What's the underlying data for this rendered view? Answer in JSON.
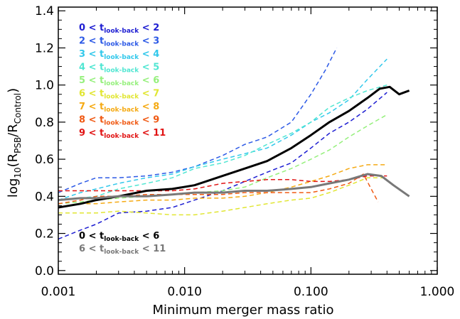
{
  "chart_data": {
    "type": "line",
    "xlabel": "Minimum merger mass ratio",
    "ylabel": {
      "main": "log",
      "base": "10",
      "open": "(R",
      "num_sub": "PSB",
      "slash": "/R",
      "den_sub": "Control",
      "close": ")"
    },
    "xscale": "log",
    "xlim": [
      0.001,
      1.0
    ],
    "ylim": [
      -0.02,
      1.42
    ],
    "xticks": [
      {
        "value": 0.001,
        "label": "0.001"
      },
      {
        "value": 0.01,
        "label": "0.010"
      },
      {
        "value": 0.1,
        "label": "0.100"
      },
      {
        "value": 1.0,
        "label": "1.000"
      }
    ],
    "yticks": [
      {
        "value": 0.0,
        "label": "0.0"
      },
      {
        "value": 0.2,
        "label": "0.2"
      },
      {
        "value": 0.4,
        "label": "0.4"
      },
      {
        "value": 0.6,
        "label": "0.6"
      },
      {
        "value": 0.8,
        "label": "0.8"
      },
      {
        "value": 1.0,
        "label": "1.0"
      },
      {
        "value": 1.2,
        "label": "1.2"
      },
      {
        "value": 1.4,
        "label": "1.4"
      }
    ],
    "grid": false,
    "legend_position": "top-left",
    "lower_legend_position": "bottom-left",
    "series": [
      {
        "name": "0 < t_look-back < 2",
        "lo": "0",
        "hi": "2",
        "color": "#1e1ed2",
        "dashed": true,
        "width": 1.5,
        "x": [
          0.001,
          0.0014,
          0.002,
          0.003,
          0.005,
          0.008,
          0.012,
          0.02,
          0.03,
          0.045,
          0.07,
          0.1,
          0.14,
          0.2,
          0.28,
          0.4
        ],
        "y": [
          0.17,
          0.21,
          0.25,
          0.31,
          0.32,
          0.34,
          0.38,
          0.43,
          0.48,
          0.53,
          0.58,
          0.66,
          0.74,
          0.8,
          0.87,
          0.96
        ]
      },
      {
        "name": "2 < t_look-back < 3",
        "lo": "2",
        "hi": "3",
        "color": "#2d5ae6",
        "dashed": true,
        "width": 1.5,
        "x": [
          0.001,
          0.0015,
          0.002,
          0.003,
          0.005,
          0.008,
          0.012,
          0.02,
          0.03,
          0.045,
          0.07,
          0.1,
          0.13,
          0.16
        ],
        "y": [
          0.42,
          0.47,
          0.5,
          0.5,
          0.51,
          0.53,
          0.56,
          0.62,
          0.68,
          0.72,
          0.8,
          0.95,
          1.08,
          1.2
        ]
      },
      {
        "name": "3 < t_look-back < 4",
        "lo": "3",
        "hi": "4",
        "color": "#32c8eb",
        "dashed": true,
        "width": 1.5,
        "x": [
          0.001,
          0.0015,
          0.002,
          0.003,
          0.005,
          0.008,
          0.012,
          0.02,
          0.03,
          0.045,
          0.07,
          0.1,
          0.14,
          0.2,
          0.28,
          0.4
        ],
        "y": [
          0.38,
          0.42,
          0.44,
          0.47,
          0.5,
          0.52,
          0.56,
          0.6,
          0.63,
          0.66,
          0.73,
          0.8,
          0.85,
          0.92,
          1.03,
          1.14
        ]
      },
      {
        "name": "4 < t_look-back < 5",
        "lo": "4",
        "hi": "5",
        "color": "#50e6d2",
        "dashed": true,
        "width": 1.5,
        "x": [
          0.001,
          0.0015,
          0.002,
          0.003,
          0.005,
          0.008,
          0.012,
          0.02,
          0.03,
          0.045,
          0.07,
          0.1,
          0.14,
          0.2,
          0.28,
          0.4
        ],
        "y": [
          0.38,
          0.39,
          0.4,
          0.44,
          0.47,
          0.5,
          0.55,
          0.58,
          0.62,
          0.68,
          0.74,
          0.8,
          0.88,
          0.93,
          0.97,
          1.0
        ]
      },
      {
        "name": "5 < t_look-back < 6",
        "lo": "5",
        "hi": "6",
        "color": "#96f07d",
        "dashed": true,
        "width": 1.5,
        "x": [
          0.001,
          0.0015,
          0.002,
          0.003,
          0.005,
          0.008,
          0.012,
          0.02,
          0.03,
          0.045,
          0.07,
          0.1,
          0.14,
          0.2,
          0.28,
          0.4
        ],
        "y": [
          0.36,
          0.37,
          0.38,
          0.39,
          0.4,
          0.41,
          0.42,
          0.43,
          0.45,
          0.5,
          0.55,
          0.6,
          0.65,
          0.72,
          0.78,
          0.84
        ]
      },
      {
        "name": "6 < t_look-back < 7",
        "lo": "6",
        "hi": "7",
        "color": "#e1e632",
        "dashed": true,
        "width": 1.5,
        "x": [
          0.001,
          0.0015,
          0.002,
          0.003,
          0.005,
          0.008,
          0.012,
          0.02,
          0.03,
          0.045,
          0.07,
          0.1,
          0.14,
          0.2,
          0.28,
          0.4
        ],
        "y": [
          0.31,
          0.31,
          0.31,
          0.32,
          0.31,
          0.3,
          0.3,
          0.32,
          0.34,
          0.36,
          0.38,
          0.39,
          0.42,
          0.46,
          0.5,
          0.5
        ]
      },
      {
        "name": "7 < t_look-back < 8",
        "lo": "7",
        "hi": "8",
        "color": "#f5aa14",
        "dashed": true,
        "width": 1.5,
        "x": [
          0.001,
          0.0015,
          0.002,
          0.003,
          0.005,
          0.008,
          0.012,
          0.02,
          0.03,
          0.045,
          0.07,
          0.1,
          0.14,
          0.2,
          0.28,
          0.4
        ],
        "y": [
          0.34,
          0.36,
          0.36,
          0.37,
          0.38,
          0.38,
          0.39,
          0.39,
          0.4,
          0.42,
          0.45,
          0.48,
          0.51,
          0.55,
          0.57,
          0.57
        ]
      },
      {
        "name": "8 < t_look-back < 9",
        "lo": "8",
        "hi": "9",
        "color": "#f05a14",
        "dashed": true,
        "width": 1.5,
        "x": [
          0.001,
          0.0015,
          0.002,
          0.003,
          0.005,
          0.008,
          0.012,
          0.02,
          0.03,
          0.045,
          0.07,
          0.1,
          0.14,
          0.2,
          0.26,
          0.3,
          0.34
        ],
        "y": [
          0.36,
          0.38,
          0.4,
          0.4,
          0.41,
          0.41,
          0.41,
          0.41,
          0.42,
          0.42,
          0.42,
          0.42,
          0.44,
          0.47,
          0.52,
          0.44,
          0.37
        ]
      },
      {
        "name": "9 < t_look-back < 11",
        "lo": "9",
        "hi": "11",
        "color": "#e11414",
        "dashed": true,
        "width": 1.5,
        "x": [
          0.001,
          0.0015,
          0.002,
          0.003,
          0.005,
          0.008,
          0.012,
          0.02,
          0.03,
          0.045,
          0.07,
          0.1,
          0.14,
          0.2,
          0.28,
          0.4
        ],
        "y": [
          0.43,
          0.43,
          0.43,
          0.43,
          0.43,
          0.43,
          0.44,
          0.47,
          0.48,
          0.49,
          0.49,
          0.48,
          0.48,
          0.49,
          0.51,
          0.51
        ]
      },
      {
        "name": "0 < t_look-back < 6",
        "lo": "0",
        "hi": "6",
        "color": "#000000",
        "dashed": false,
        "width": 3,
        "x": [
          0.001,
          0.0015,
          0.002,
          0.003,
          0.005,
          0.008,
          0.012,
          0.02,
          0.03,
          0.045,
          0.07,
          0.1,
          0.14,
          0.2,
          0.28,
          0.35,
          0.42,
          0.5,
          0.6
        ],
        "y": [
          0.34,
          0.36,
          0.38,
          0.4,
          0.43,
          0.44,
          0.46,
          0.51,
          0.55,
          0.59,
          0.66,
          0.73,
          0.8,
          0.86,
          0.93,
          0.98,
          0.99,
          0.95,
          0.97
        ]
      },
      {
        "name": "6 < t_look-back < 11",
        "lo": "6",
        "hi": "11",
        "color": "#787878",
        "dashed": false,
        "width": 3,
        "x": [
          0.001,
          0.0015,
          0.002,
          0.003,
          0.005,
          0.008,
          0.012,
          0.02,
          0.03,
          0.045,
          0.07,
          0.1,
          0.14,
          0.2,
          0.28,
          0.36,
          0.45,
          0.6
        ],
        "y": [
          0.38,
          0.39,
          0.39,
          0.4,
          0.4,
          0.41,
          0.42,
          0.42,
          0.43,
          0.43,
          0.44,
          0.45,
          0.47,
          0.49,
          0.52,
          0.51,
          0.46,
          0.4
        ]
      }
    ],
    "legend_sub_text": "look-back",
    "legend_t": "t",
    "legend_lt": "<"
  }
}
